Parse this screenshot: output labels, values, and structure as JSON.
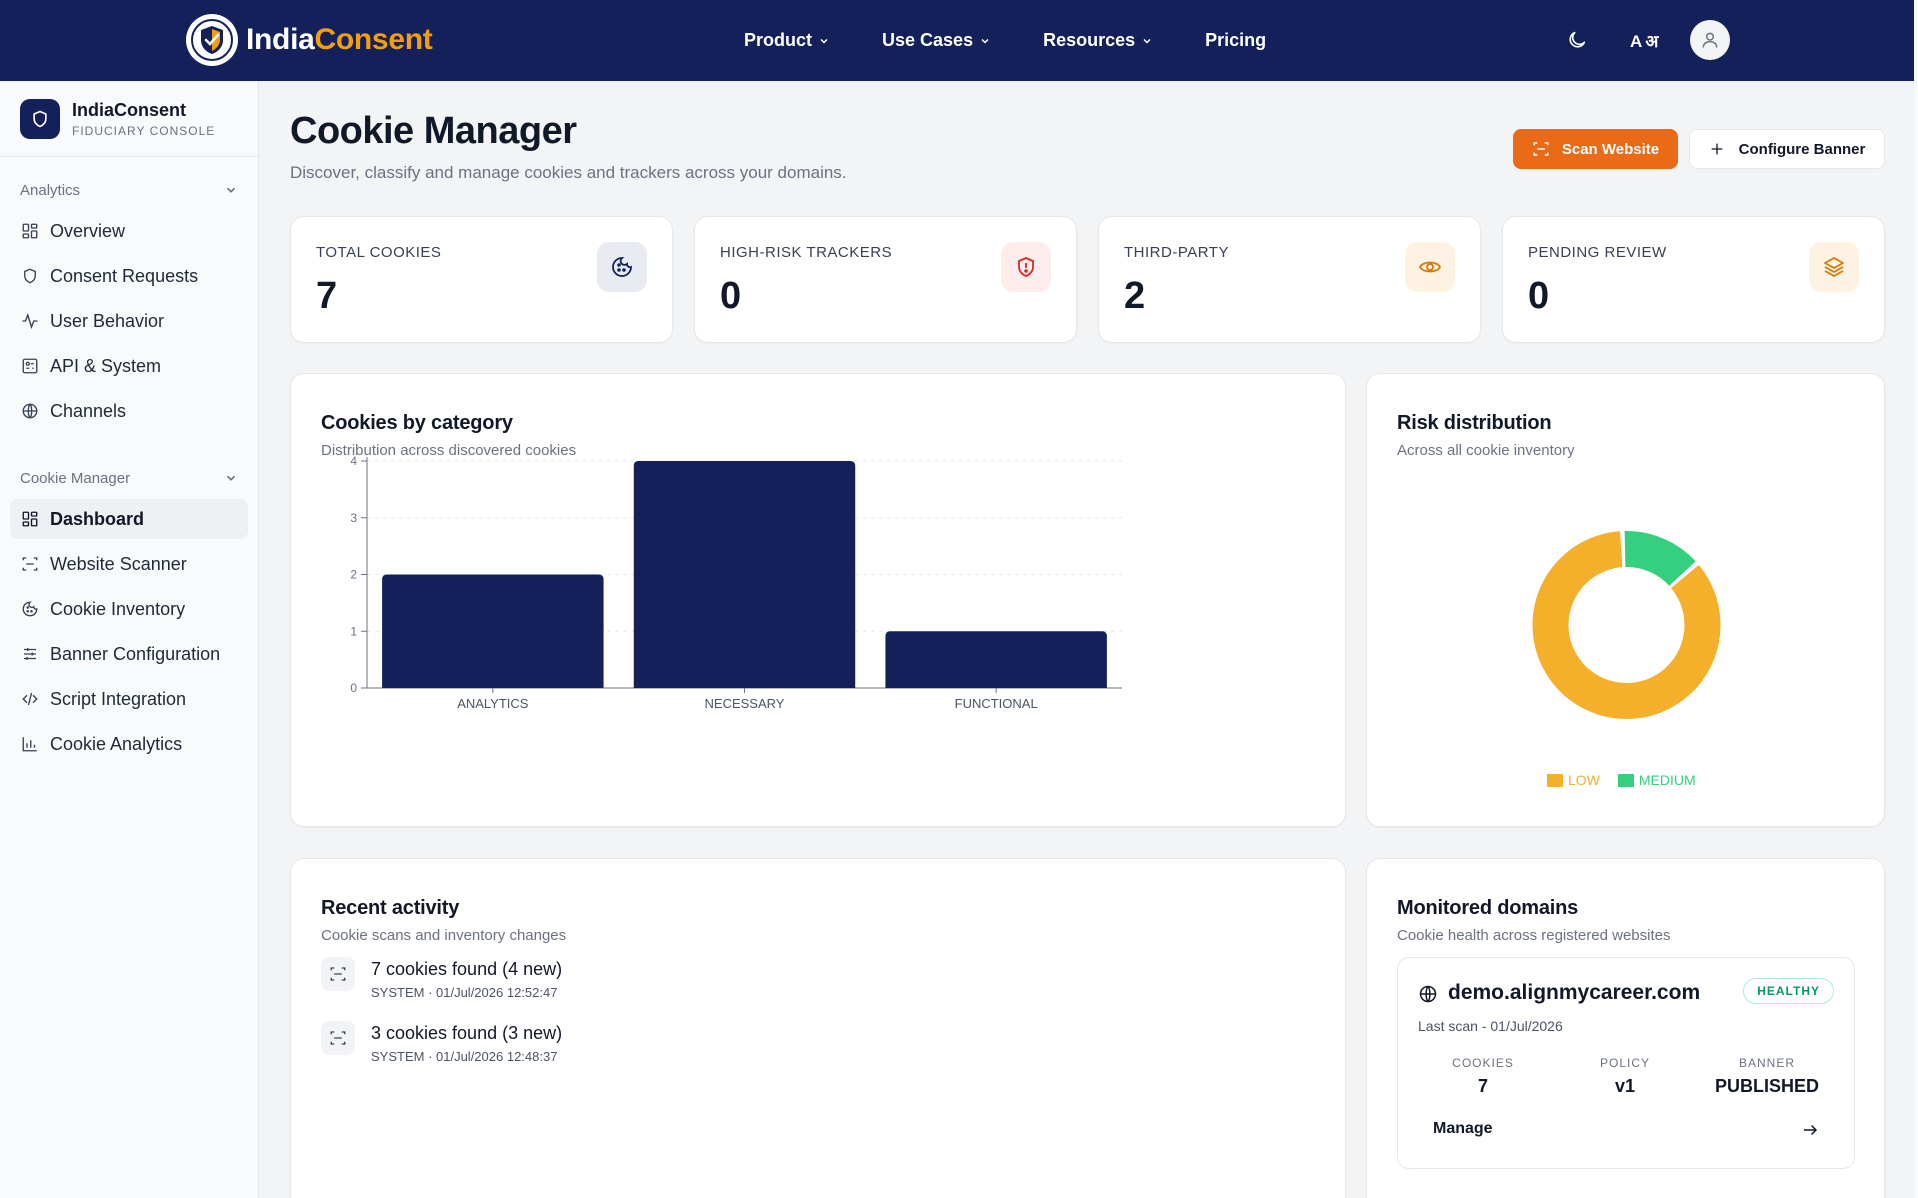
{
  "topnav": {
    "brand_part1": "India",
    "brand_part2": "Consent",
    "menu": [
      {
        "label": "Product",
        "dropdown": true
      },
      {
        "label": "Use Cases",
        "dropdown": true
      },
      {
        "label": "Resources",
        "dropdown": true
      },
      {
        "label": "Pricing",
        "dropdown": false
      }
    ],
    "lang_toggle": "A अ"
  },
  "sidebar": {
    "org_name": "IndiaConsent",
    "org_sub": "FIDUCIARY CONSOLE",
    "sections": [
      {
        "title": "Analytics",
        "items": [
          {
            "label": "Overview",
            "icon": "grid-icon"
          },
          {
            "label": "Consent Requests",
            "icon": "shield-icon"
          },
          {
            "label": "User Behavior",
            "icon": "activity-icon"
          },
          {
            "label": "API & System",
            "icon": "api-icon"
          },
          {
            "label": "Channels",
            "icon": "globe-icon"
          }
        ]
      },
      {
        "title": "Cookie Manager",
        "items": [
          {
            "label": "Dashboard",
            "icon": "grid-icon",
            "active": true
          },
          {
            "label": "Website Scanner",
            "icon": "scan-icon"
          },
          {
            "label": "Cookie Inventory",
            "icon": "cookie-icon"
          },
          {
            "label": "Banner Configuration",
            "icon": "sliders-icon"
          },
          {
            "label": "Script Integration",
            "icon": "code-icon"
          },
          {
            "label": "Cookie Analytics",
            "icon": "bar-chart-icon"
          }
        ]
      }
    ]
  },
  "header": {
    "title": "Cookie Manager",
    "subtitle": "Discover, classify and manage cookies and trackers across your domains.",
    "scan_button": "Scan Website",
    "configure_button": "Configure Banner"
  },
  "stats": [
    {
      "label": "TOTAL COOKIES",
      "value": "7",
      "icon": "cookie-icon",
      "color": "#1e3a8a"
    },
    {
      "label": "HIGH-RISK TRACKERS",
      "value": "0",
      "icon": "shield-alert-icon",
      "color": "#dc2626"
    },
    {
      "label": "THIRD-PARTY",
      "value": "2",
      "icon": "eye-icon",
      "color": "#d97706"
    },
    {
      "label": "PENDING REVIEW",
      "value": "0",
      "icon": "layers-icon",
      "color": "#d97706"
    }
  ],
  "category_chart": {
    "title": "Cookies by category",
    "subtitle": "Distribution across discovered cookies"
  },
  "risk_chart": {
    "title": "Risk distribution",
    "subtitle": "Across all cookie inventory"
  },
  "chart_data": [
    {
      "type": "bar",
      "categories": [
        "ANALYTICS",
        "NECESSARY",
        "FUNCTIONAL"
      ],
      "values": [
        2,
        4,
        1
      ],
      "ylim": [
        0,
        4
      ],
      "yticks": [
        0,
        1,
        2,
        3,
        4
      ],
      "grid": true,
      "color": "#13205a"
    },
    {
      "type": "pie",
      "donut": true,
      "labels": [
        "LOW",
        "MEDIUM"
      ],
      "values": [
        6,
        1
      ],
      "colors": [
        "#f4b02a",
        "#34d07f"
      ],
      "legend": "bottom"
    }
  ],
  "activity": {
    "title": "Recent activity",
    "subtitle": "Cookie scans and inventory changes",
    "items": [
      {
        "text": "7 cookies found (4 new)",
        "meta": "SYSTEM · 01/Jul/2026 12:52:47"
      },
      {
        "text": "3 cookies found (3 new)",
        "meta": "SYSTEM · 01/Jul/2026 12:48:37"
      }
    ]
  },
  "domains": {
    "title": "Monitored domains",
    "subtitle": "Cookie health across registered websites",
    "items": [
      {
        "name": "demo.alignmycareer.com",
        "status": "HEALTHY",
        "last_scan": "Last scan - 01/Jul/2026",
        "cookies_label": "COOKIES",
        "cookies": "7",
        "policy_label": "POLICY",
        "policy": "v1",
        "banner_label": "BANNER",
        "banner": "PUBLISHED",
        "manage": "Manage"
      }
    ]
  }
}
